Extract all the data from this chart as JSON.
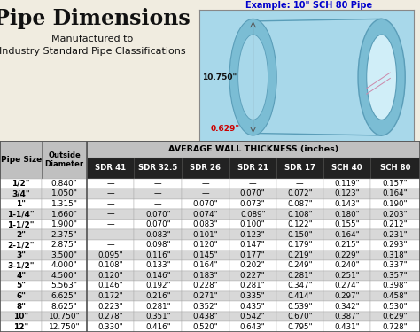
{
  "title": "Pipe Dimensions",
  "subtitle1": "Manufactured to",
  "subtitle2": "Industry Standard Pipe Classifications",
  "example_label": "Example: 10\" SCH 80 Pipe",
  "example_od": "10.750\"",
  "example_wall": "0.629\"",
  "group_header": "AVERAGE WALL THICKNESS (inches)",
  "col_headers": [
    "Pipe Size",
    "Outside\nDiameter",
    "SDR 41",
    "SDR 32.5",
    "SDR 26",
    "SDR 21",
    "SDR 17",
    "SCH 40",
    "SCH 80"
  ],
  "rows": [
    [
      "1/2\"",
      "0.840\"",
      "—",
      "—",
      "—",
      "—",
      "—",
      "0.119\"",
      "0.157\""
    ],
    [
      "3/4\"",
      "1.050\"",
      "—",
      "—",
      "—",
      "0.070\"",
      "0.072\"",
      "0.123\"",
      "0.164\""
    ],
    [
      "1\"",
      "1.315\"",
      "—",
      "—",
      "0.070\"",
      "0.073\"",
      "0.087\"",
      "0.143\"",
      "0.190\""
    ],
    [
      "1-1/4\"",
      "1.660\"",
      "—",
      "0.070\"",
      "0.074\"",
      "0.089\"",
      "0.108\"",
      "0.180\"",
      "0.203\""
    ],
    [
      "1-1/2\"",
      "1.900\"",
      "—",
      "0.070\"",
      "0.083\"",
      "0.100\"",
      "0.122\"",
      "0.155\"",
      "0.212\""
    ],
    [
      "2\"",
      "2.375\"",
      "—",
      "0.083\"",
      "0.101\"",
      "0.123\"",
      "0.150\"",
      "0.164\"",
      "0.231\""
    ],
    [
      "2-1/2\"",
      "2.875\"",
      "—",
      "0.098\"",
      "0.120\"",
      "0.147\"",
      "0.179\"",
      "0.215\"",
      "0.293\""
    ],
    [
      "3\"",
      "3.500\"",
      "0.095\"",
      "0.116\"",
      "0.145\"",
      "0.177\"",
      "0.219\"",
      "0.229\"",
      "0.318\""
    ],
    [
      "3-1/2\"",
      "4.000\"",
      "0.108\"",
      "0.133\"",
      "0.164\"",
      "0.202\"",
      "0.249\"",
      "0.240\"",
      "0.337\""
    ],
    [
      "4\"",
      "4.500\"",
      "0.120\"",
      "0.146\"",
      "0.183\"",
      "0.227\"",
      "0.281\"",
      "0.251\"",
      "0.357\""
    ],
    [
      "5\"",
      "5.563\"",
      "0.146\"",
      "0.192\"",
      "0.228\"",
      "0.281\"",
      "0.347\"",
      "0.274\"",
      "0.398\""
    ],
    [
      "6\"",
      "6.625\"",
      "0.172\"",
      "0.216\"",
      "0.271\"",
      "0.335\"",
      "0.414\"",
      "0.297\"",
      "0.458\""
    ],
    [
      "8\"",
      "8.625\"",
      "0.223\"",
      "0.281\"",
      "0.352\"",
      "0.435\"",
      "0.539\"",
      "0.342\"",
      "0.530\""
    ],
    [
      "10\"",
      "10.750\"",
      "0.278\"",
      "0.351\"",
      "0.438\"",
      "0.542\"",
      "0.670\"",
      "0.387\"",
      "0.629\""
    ],
    [
      "12\"",
      "12.750\"",
      "0.330\"",
      "0.416\"",
      "0.520\"",
      "0.643\"",
      "0.795\"",
      "0.431\"",
      "0.728\""
    ]
  ],
  "bg_color": "#f0ece0",
  "header_bg": "#c0c0c0",
  "sdr_header_bg": "#222222",
  "row_even_bg": "#ffffff",
  "row_odd_bg": "#d8d8d8",
  "title_color": "#111111",
  "blue_color": "#0000cc",
  "red_color": "#cc0000",
  "pipe_light_blue": "#a8d8ea",
  "pipe_mid_blue": "#7bbdd4",
  "pipe_dark_blue": "#5a9db8",
  "pipe_inner": "#c8ecf8"
}
